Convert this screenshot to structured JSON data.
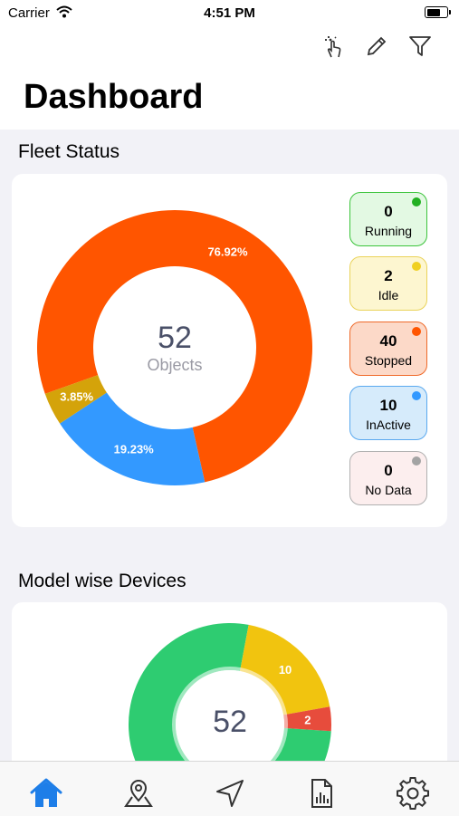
{
  "status_bar": {
    "carrier": "Carrier",
    "time": "4:51 PM"
  },
  "header": {
    "title": "Dashboard",
    "actions": [
      "tap-sparkle-icon",
      "pencil-icon",
      "filter-icon"
    ]
  },
  "fleet_status": {
    "title": "Fleet Status",
    "total": "52",
    "total_label": "Objects",
    "legend": [
      {
        "count": "0",
        "label": "Running",
        "bg": "#e3f9e3",
        "border": "#3cc43c",
        "dot": "#22b022"
      },
      {
        "count": "2",
        "label": "Idle",
        "bg": "#fdf6d0",
        "border": "#ead35a",
        "dot": "#f0d020"
      },
      {
        "count": "40",
        "label": "Stopped",
        "bg": "#fcd9c8",
        "border": "#ef6a2a",
        "dot": "#ff5500"
      },
      {
        "count": "10",
        "label": "InActive",
        "bg": "#d6ebfb",
        "border": "#5aa9ef",
        "dot": "#3399ff"
      },
      {
        "count": "0",
        "label": "No Data",
        "bg": "#fceeee",
        "border": "#b0b0b0",
        "dot": "#a3a3a3"
      }
    ]
  },
  "model_devices": {
    "title": "Model wise Devices",
    "total": "52"
  },
  "chart_data": [
    {
      "type": "pie",
      "title": "Fleet Status",
      "categories": [
        "Stopped",
        "InActive",
        "Idle"
      ],
      "values": [
        40,
        10,
        2
      ],
      "labels": [
        "76.92%",
        "19.23%",
        "3.85%"
      ],
      "colors": [
        "#ff5500",
        "#3399ff",
        "#d4a30a"
      ]
    },
    {
      "type": "pie",
      "title": "Model wise Devices",
      "values": [
        40,
        10,
        2
      ],
      "labels": [
        "",
        "10",
        "2"
      ],
      "colors": [
        "#2ecc71",
        "#f1c40f",
        "#e74c3c"
      ]
    }
  ],
  "tab_bar": {
    "items": [
      "home-icon",
      "map-pin-icon",
      "navigation-icon",
      "report-icon",
      "settings-icon"
    ],
    "active_color": "#1e7ee8",
    "inactive_color": "#333333"
  }
}
